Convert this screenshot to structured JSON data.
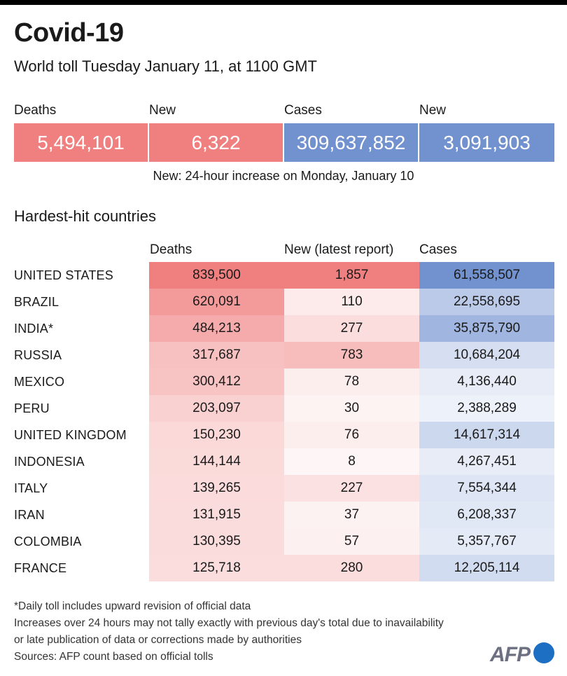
{
  "title": "Covid-19",
  "subtitle": "World toll Tuesday January 11, at 1100 GMT",
  "summary": {
    "items": [
      {
        "label": "Deaths",
        "value": "5,494,101",
        "color": "#f08080"
      },
      {
        "label": "New",
        "value": "6,322",
        "color": "#f08080"
      },
      {
        "label": "Cases",
        "value": "309,637,852",
        "color": "#7191cf"
      },
      {
        "label": "New",
        "value": "3,091,903",
        "color": "#7191cf"
      }
    ],
    "note": "New: 24-hour increase on Monday, January 10"
  },
  "section_title": "Hardest-hit countries",
  "chart_data": {
    "type": "table",
    "columns": [
      "Deaths",
      "New (latest report)",
      "Cases"
    ],
    "rows": [
      {
        "country": "UNITED STATES",
        "deaths": "839,500",
        "new": "1,857",
        "cases": "61,558,507"
      },
      {
        "country": "BRAZIL",
        "deaths": "620,091",
        "new": "110",
        "cases": "22,558,695"
      },
      {
        "country": "INDIA*",
        "deaths": "484,213",
        "new": "277",
        "cases": "35,875,790"
      },
      {
        "country": "RUSSIA",
        "deaths": "317,687",
        "new": "783",
        "cases": "10,684,204"
      },
      {
        "country": "MEXICO",
        "deaths": "300,412",
        "new": "78",
        "cases": "4,136,440"
      },
      {
        "country": "PERU",
        "deaths": "203,097",
        "new": "30",
        "cases": "2,388,289"
      },
      {
        "country": "UNITED KINGDOM",
        "deaths": "150,230",
        "new": "76",
        "cases": "14,617,314"
      },
      {
        "country": "INDONESIA",
        "deaths": "144,144",
        "new": "8",
        "cases": "4,267,451"
      },
      {
        "country": "ITALY",
        "deaths": "139,265",
        "new": "227",
        "cases": "7,554,344"
      },
      {
        "country": "IRAN",
        "deaths": "131,915",
        "new": "37",
        "cases": "6,208,337"
      },
      {
        "country": "COLOMBIA",
        "deaths": "130,395",
        "new": "57",
        "cases": "5,357,767"
      },
      {
        "country": "FRANCE",
        "deaths": "125,718",
        "new": "280",
        "cases": "12,205,114"
      }
    ]
  },
  "colors": {
    "deaths_scale": "#f08080",
    "cases_scale": "#7191cf"
  },
  "notes": [
    "*Daily toll includes upward revision of official data",
    "Increases over 24 hours may not tally exactly with previous day's total due to inavailability",
    "or late publication of data or corrections made by authorities",
    "Sources: AFP count based on official tolls"
  ],
  "logo": "AFP"
}
